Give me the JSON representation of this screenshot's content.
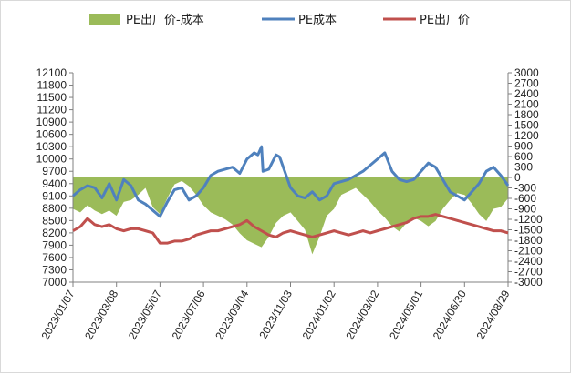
{
  "chart_data": {
    "type": "line",
    "title": "",
    "xlabel": "",
    "ylabel": "",
    "left_axis": {
      "min": 7000,
      "max": 12100,
      "step": 300
    },
    "right_axis": {
      "min": -3000,
      "max": 3000,
      "step": 300
    },
    "x_ticks": [
      "2023/01/07",
      "2023/03/08",
      "2023/05/07",
      "2023/07/06",
      "2023/09/04",
      "2023/11/03",
      "2024/01/02",
      "2024/03/02",
      "2024/05/01",
      "2024/06/30",
      "2024/08/29"
    ],
    "x_range": [
      0,
      600
    ],
    "legend": {
      "position": "top"
    },
    "series": [
      {
        "name": "PE出厂价-成本",
        "type": "area",
        "axis": "right",
        "color": "#9bbb59",
        "x": [
          0,
          10,
          20,
          30,
          40,
          50,
          60,
          70,
          80,
          90,
          100,
          110,
          120,
          130,
          140,
          150,
          160,
          170,
          180,
          190,
          200,
          210,
          220,
          230,
          240,
          250,
          260,
          270,
          280,
          290,
          300,
          310,
          320,
          330,
          340,
          350,
          360,
          370,
          380,
          390,
          400,
          410,
          420,
          430,
          440,
          450,
          460,
          470,
          480,
          490,
          500,
          510,
          520,
          530,
          540,
          550,
          560,
          570,
          580,
          590,
          600
        ],
        "values": [
          -900,
          -1000,
          -800,
          -950,
          -1050,
          -950,
          -1100,
          -700,
          -650,
          -500,
          -300,
          -850,
          -1050,
          -600,
          -200,
          -100,
          -250,
          -500,
          -800,
          -1000,
          -1100,
          -1200,
          -1350,
          -1600,
          -1800,
          -1900,
          -2000,
          -1700,
          -1300,
          -1100,
          -1000,
          -1250,
          -1500,
          -2200,
          -1700,
          -1100,
          -900,
          -500,
          -400,
          -300,
          -500,
          -700,
          -950,
          -1150,
          -1400,
          -1550,
          -1300,
          -1150,
          -1250,
          -1400,
          -1250,
          -900,
          -650,
          -450,
          -500,
          -750,
          -1050,
          -1250,
          -900,
          -850,
          -600
        ]
      },
      {
        "name": "PE成本",
        "type": "line",
        "axis": "left",
        "color": "#4f81bd",
        "x": [
          0,
          10,
          20,
          30,
          40,
          50,
          60,
          70,
          80,
          90,
          100,
          110,
          120,
          130,
          140,
          150,
          160,
          170,
          180,
          190,
          200,
          210,
          220,
          230,
          240,
          250,
          255,
          260,
          262,
          270,
          280,
          285,
          290,
          300,
          310,
          320,
          330,
          340,
          350,
          360,
          370,
          380,
          390,
          400,
          410,
          420,
          430,
          440,
          450,
          460,
          470,
          480,
          490,
          500,
          510,
          520,
          530,
          540,
          550,
          560,
          570,
          580,
          590,
          600
        ],
        "values": [
          9100,
          9250,
          9350,
          9300,
          9050,
          9400,
          9000,
          9500,
          9350,
          9000,
          8900,
          8750,
          8600,
          8950,
          9250,
          9300,
          9000,
          9100,
          9300,
          9600,
          9700,
          9750,
          9800,
          9650,
          10000,
          10150,
          10100,
          10300,
          9700,
          9750,
          10100,
          10050,
          9800,
          9300,
          9100,
          9050,
          9200,
          9000,
          9100,
          9400,
          9450,
          9500,
          9600,
          9700,
          9850,
          10000,
          10150,
          9700,
          9500,
          9450,
          9500,
          9700,
          9900,
          9800,
          9500,
          9200,
          9100,
          9000,
          9200,
          9400,
          9700,
          9800,
          9600,
          9350
        ]
      },
      {
        "name": "PE出厂价",
        "type": "line",
        "axis": "left",
        "color": "#c0504d",
        "x": [
          0,
          10,
          20,
          30,
          40,
          50,
          60,
          70,
          80,
          90,
          100,
          110,
          120,
          130,
          140,
          150,
          160,
          170,
          180,
          190,
          200,
          210,
          220,
          230,
          240,
          250,
          260,
          270,
          280,
          290,
          300,
          310,
          320,
          330,
          340,
          350,
          360,
          370,
          380,
          390,
          400,
          410,
          420,
          430,
          440,
          450,
          460,
          470,
          480,
          490,
          500,
          510,
          520,
          530,
          540,
          550,
          560,
          570,
          580,
          590,
          600
        ],
        "values": [
          8250,
          8350,
          8550,
          8400,
          8350,
          8400,
          8300,
          8250,
          8300,
          8300,
          8250,
          8200,
          7950,
          7950,
          8000,
          8000,
          8050,
          8150,
          8200,
          8250,
          8250,
          8300,
          8350,
          8400,
          8500,
          8350,
          8250,
          8150,
          8100,
          8200,
          8250,
          8200,
          8150,
          8100,
          8150,
          8200,
          8250,
          8200,
          8150,
          8200,
          8250,
          8200,
          8250,
          8300,
          8350,
          8400,
          8450,
          8550,
          8600,
          8600,
          8650,
          8600,
          8550,
          8500,
          8450,
          8400,
          8350,
          8300,
          8250,
          8250,
          8200
        ]
      }
    ]
  }
}
